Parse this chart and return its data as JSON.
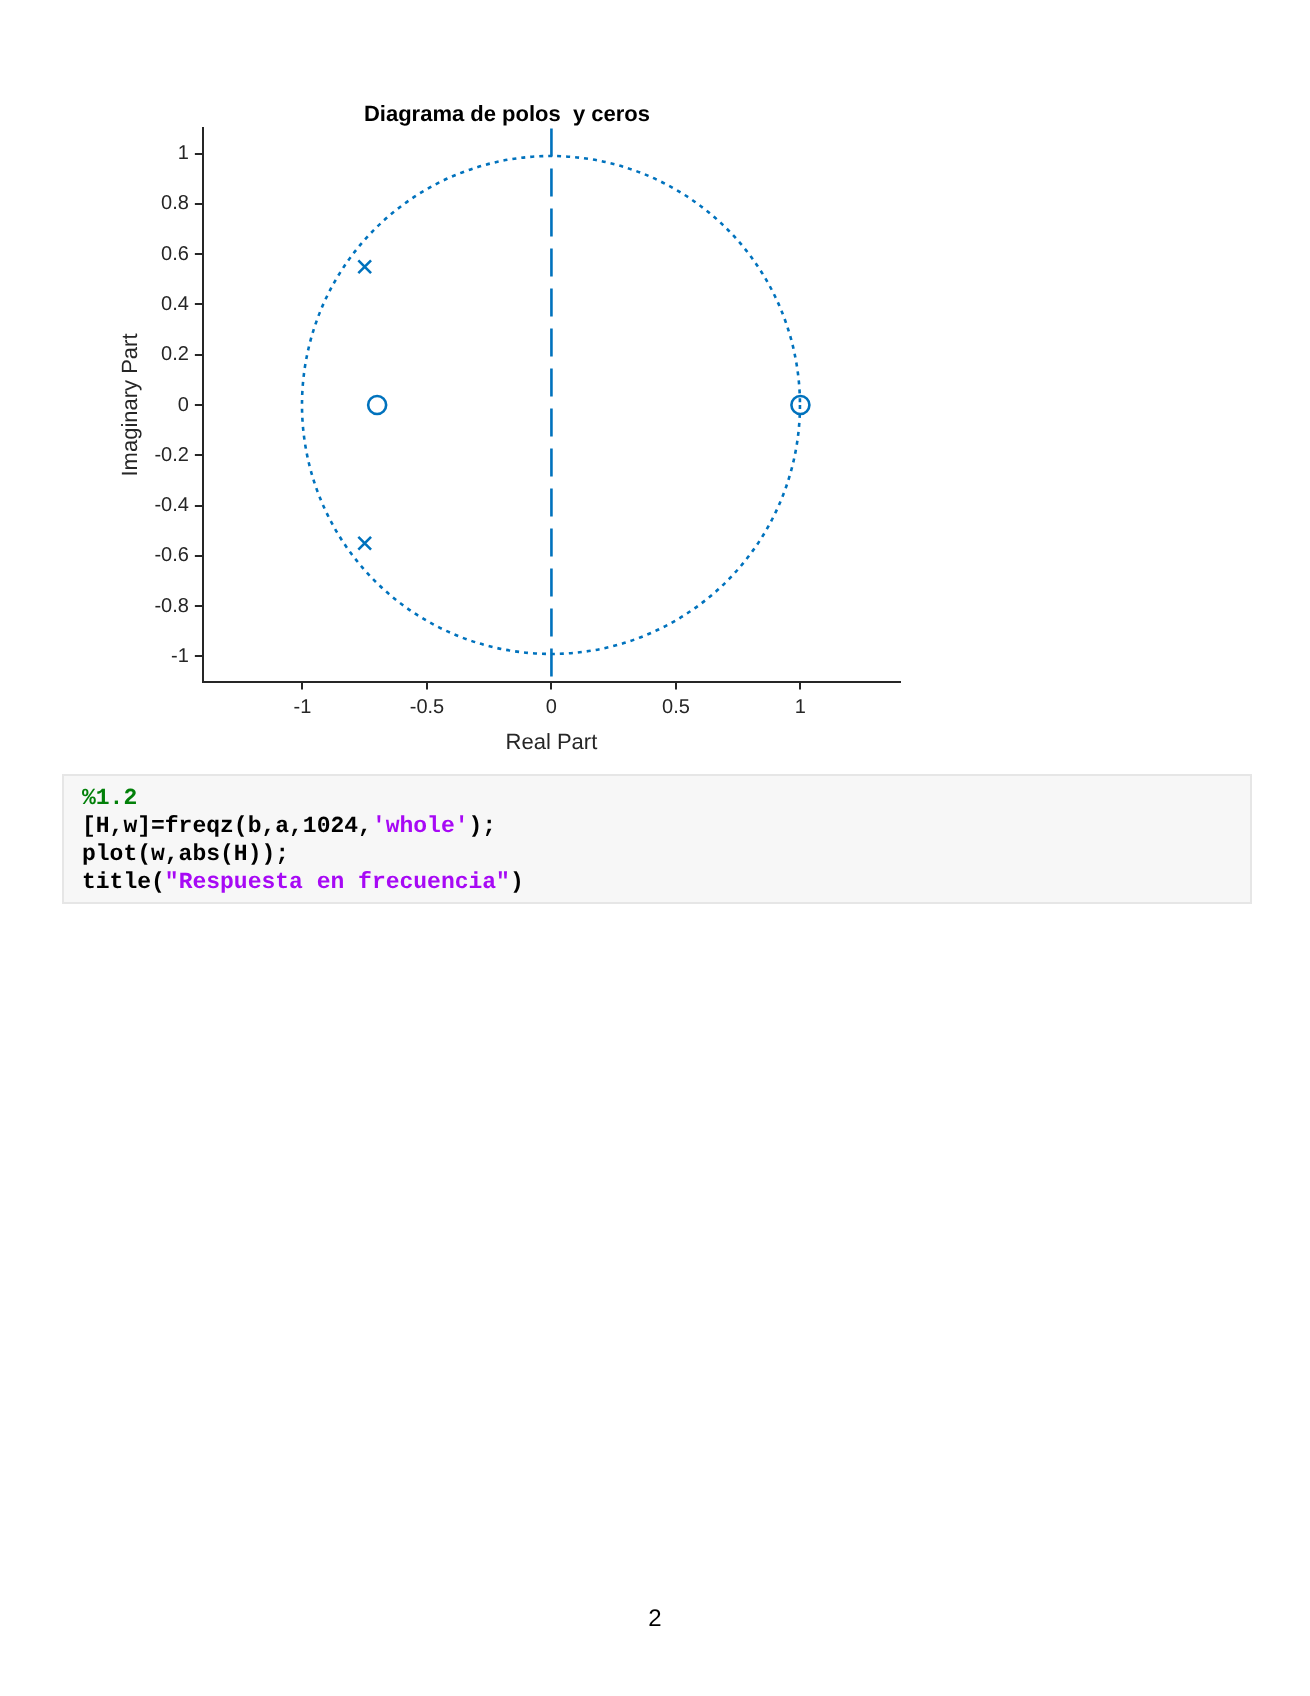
{
  "chart_data": {
    "type": "scatter",
    "title": "Diagrama de polos  y ceros",
    "xlabel": "Real Part",
    "ylabel": "Imaginary Part",
    "xlim": [
      -1.4,
      1.4
    ],
    "ylim": [
      -1.1,
      1.1
    ],
    "xticks": [
      -1,
      -0.5,
      0,
      0.5,
      1
    ],
    "yticks": [
      -1,
      -0.8,
      -0.6,
      -0.4,
      -0.2,
      0,
      0.2,
      0.4,
      0.6,
      0.8,
      1
    ],
    "series": [
      {
        "type": "scatter",
        "color": "#0072bd",
        "marker": "circle",
        "x": [
          -0.7,
          1
        ],
        "values": [
          0,
          0
        ]
      },
      {
        "type": "scatter",
        "color": "#0072bd",
        "marker": "cross",
        "x": [
          -0.75,
          -0.75
        ],
        "values": [
          0.55,
          -0.55
        ]
      }
    ],
    "ref_lines": [
      {
        "axis": "x",
        "value": 0,
        "color": "#0072bd",
        "line_style": "dashed"
      }
    ],
    "annotations": [
      "%1.2\n[H,w]=freqz(b,a,1024,'whole');\nplot(w,abs(H));\ntitle(\"Respuesta en frecuencia\")",
      "2"
    ]
  }
}
